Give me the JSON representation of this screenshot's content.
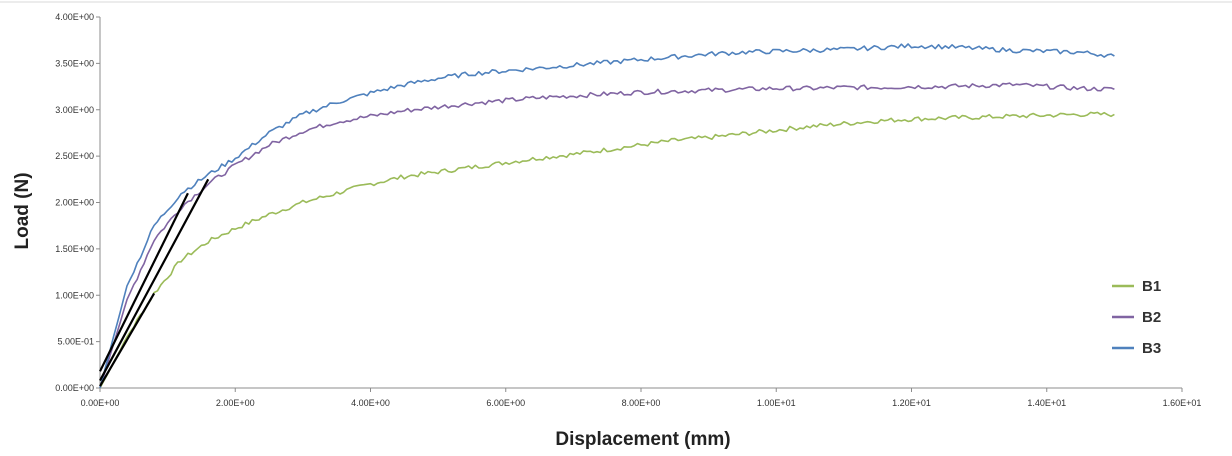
{
  "chart_data": {
    "type": "line",
    "title": "",
    "xlabel": "Displacement (mm)",
    "ylabel": "Load (N)",
    "xlim": [
      0,
      16
    ],
    "ylim": [
      0,
      4
    ],
    "x_ticks": [
      0,
      2,
      4,
      6,
      8,
      10,
      12,
      14,
      16
    ],
    "y_ticks": [
      0,
      0.5,
      1,
      1.5,
      2,
      2.5,
      3,
      3.5,
      4
    ],
    "x_tick_labels": [
      "0.00E+00",
      "2.00E+00",
      "4.00E+00",
      "6.00E+00",
      "8.00E+00",
      "1.00E+01",
      "1.20E+01",
      "1.40E+01",
      "1.60E+01"
    ],
    "y_tick_labels": [
      "0.00E+00",
      "5.00E-01",
      "1.00E+00",
      "1.50E+00",
      "2.00E+00",
      "2.50E+00",
      "3.00E+00",
      "3.50E+00",
      "4.00E+00"
    ],
    "grid": false,
    "legend_position": "right",
    "series": [
      {
        "name": "B1",
        "color": "#9bbb59",
        "x": [
          0,
          0.4,
          0.8,
          1.2,
          1.6,
          2,
          2.5,
          3,
          3.5,
          4,
          4.5,
          5,
          5.5,
          6,
          6.5,
          7,
          7.5,
          8,
          8.5,
          9,
          9.5,
          10,
          10.5,
          11,
          11.5,
          12,
          12.5,
          13,
          13.5,
          14,
          14.5,
          15
        ],
        "y": [
          0,
          0.55,
          1.02,
          1.38,
          1.58,
          1.72,
          1.87,
          2.0,
          2.1,
          2.2,
          2.28,
          2.33,
          2.38,
          2.43,
          2.48,
          2.52,
          2.57,
          2.62,
          2.67,
          2.7,
          2.74,
          2.78,
          2.82,
          2.85,
          2.88,
          2.9,
          2.91,
          2.92,
          2.93,
          2.94,
          2.95,
          2.95
        ]
      },
      {
        "name": "B2",
        "color": "#8064a2",
        "x": [
          0,
          0.4,
          0.8,
          1.2,
          1.6,
          2,
          2.5,
          3,
          3.5,
          4,
          4.5,
          5,
          5.5,
          6,
          6.5,
          7,
          7.5,
          8,
          8.5,
          9,
          9.5,
          10,
          10.5,
          11,
          11.5,
          12,
          12.5,
          13,
          13.5,
          14,
          14.5,
          15
        ],
        "y": [
          0,
          0.95,
          1.6,
          1.95,
          2.2,
          2.4,
          2.62,
          2.77,
          2.87,
          2.93,
          2.99,
          3.03,
          3.07,
          3.1,
          3.13,
          3.15,
          3.17,
          3.19,
          3.2,
          3.21,
          3.22,
          3.23,
          3.23,
          3.24,
          3.24,
          3.25,
          3.25,
          3.26,
          3.27,
          3.25,
          3.23,
          3.22
        ]
      },
      {
        "name": "B3",
        "color": "#4f81bd",
        "x": [
          0,
          0.4,
          0.8,
          1.2,
          1.6,
          2,
          2.5,
          3,
          3.5,
          4,
          4.5,
          5,
          5.5,
          6,
          6.5,
          7,
          7.5,
          8,
          8.5,
          9,
          9.5,
          10,
          10.5,
          11,
          11.5,
          12,
          12.5,
          13,
          13.5,
          14,
          14.5,
          15
        ],
        "y": [
          0,
          1.1,
          1.75,
          2.1,
          2.3,
          2.48,
          2.75,
          2.95,
          3.08,
          3.18,
          3.27,
          3.34,
          3.39,
          3.42,
          3.45,
          3.48,
          3.51,
          3.54,
          3.57,
          3.6,
          3.62,
          3.63,
          3.64,
          3.65,
          3.67,
          3.69,
          3.68,
          3.66,
          3.64,
          3.63,
          3.62,
          3.58
        ]
      }
    ],
    "tangent_lines": [
      {
        "x": [
          0,
          0.8
        ],
        "y": [
          0.02,
          1.02
        ],
        "color": "#000000"
      },
      {
        "x": [
          0,
          1.3
        ],
        "y": [
          0.18,
          2.1
        ],
        "color": "#000000"
      },
      {
        "x": [
          0,
          1.6
        ],
        "y": [
          0.08,
          2.25
        ],
        "color": "#000000"
      }
    ]
  }
}
